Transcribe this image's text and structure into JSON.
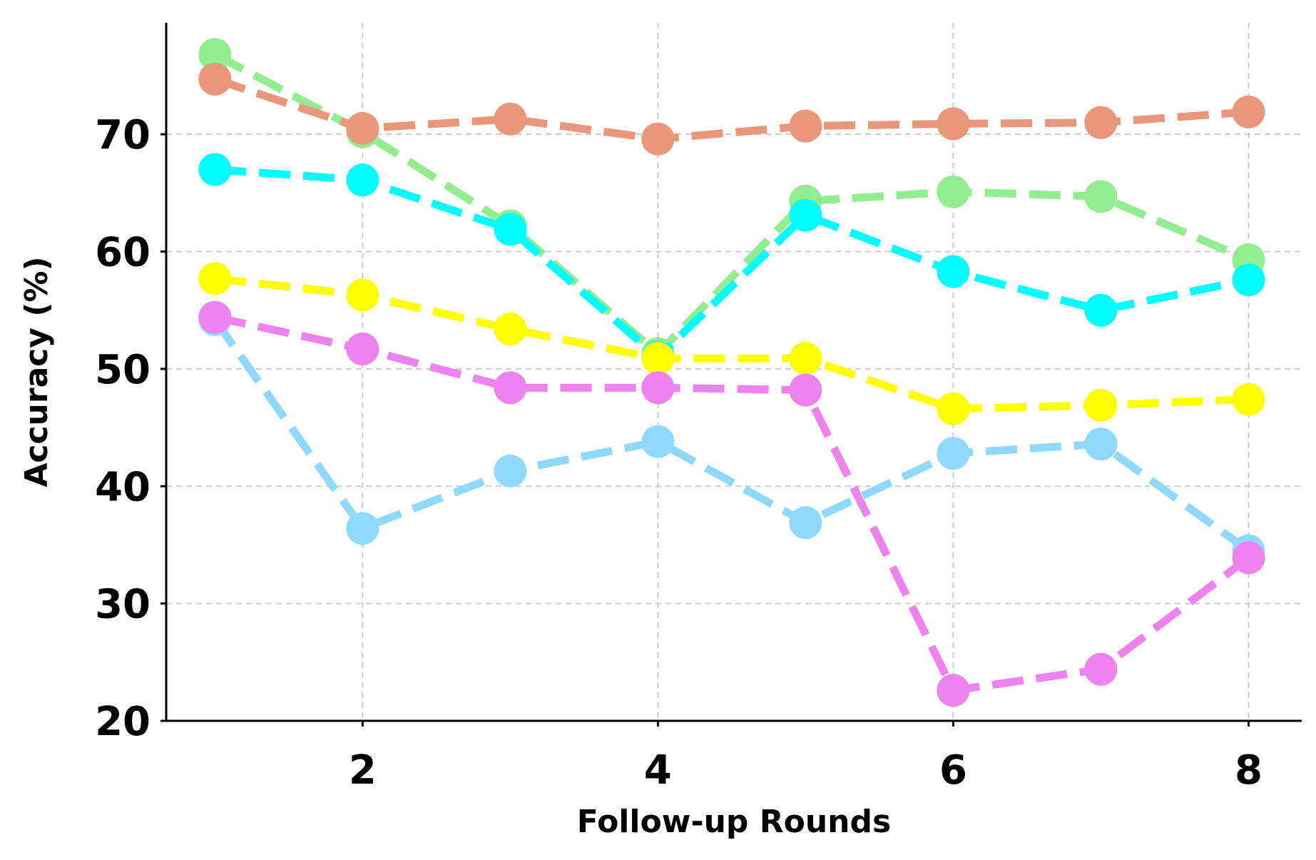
{
  "chart_data": {
    "type": "line",
    "title": "",
    "xlabel": "Follow-up Rounds",
    "ylabel": "Accuracy (%)",
    "x": [
      1,
      2,
      3,
      4,
      5,
      6,
      7,
      8
    ],
    "xlim": [
      0.67,
      8.36
    ],
    "ylim": [
      20,
      79.5
    ],
    "xticks": [
      2,
      4,
      6,
      8
    ],
    "yticks": [
      20,
      30,
      40,
      50,
      60,
      70
    ],
    "grid": true,
    "line_style": "dashed",
    "marker": "circle",
    "series": [
      {
        "color": "#8fd9ff",
        "values": [
          54.2,
          36.4,
          41.3,
          43.8,
          36.9,
          42.8,
          43.6,
          34.5
        ]
      },
      {
        "color": "#90ee90",
        "values": [
          76.8,
          70.2,
          62.2,
          51.3,
          64.3,
          65.1,
          64.7,
          59.3
        ]
      },
      {
        "color": "#00ffff",
        "values": [
          67.0,
          66.1,
          61.9,
          51.0,
          63.1,
          58.3,
          55.0,
          57.6
        ]
      },
      {
        "color": "#ffff00",
        "values": [
          57.7,
          56.3,
          53.4,
          50.9,
          50.9,
          46.6,
          46.9,
          47.4
        ]
      },
      {
        "color": "#ee82ee",
        "values": [
          54.4,
          51.7,
          48.4,
          48.4,
          48.2,
          22.6,
          24.4,
          33.9
        ]
      },
      {
        "color": "#e9967a",
        "values": [
          74.7,
          70.5,
          71.3,
          69.6,
          70.7,
          70.9,
          71.0,
          71.9
        ]
      }
    ]
  }
}
